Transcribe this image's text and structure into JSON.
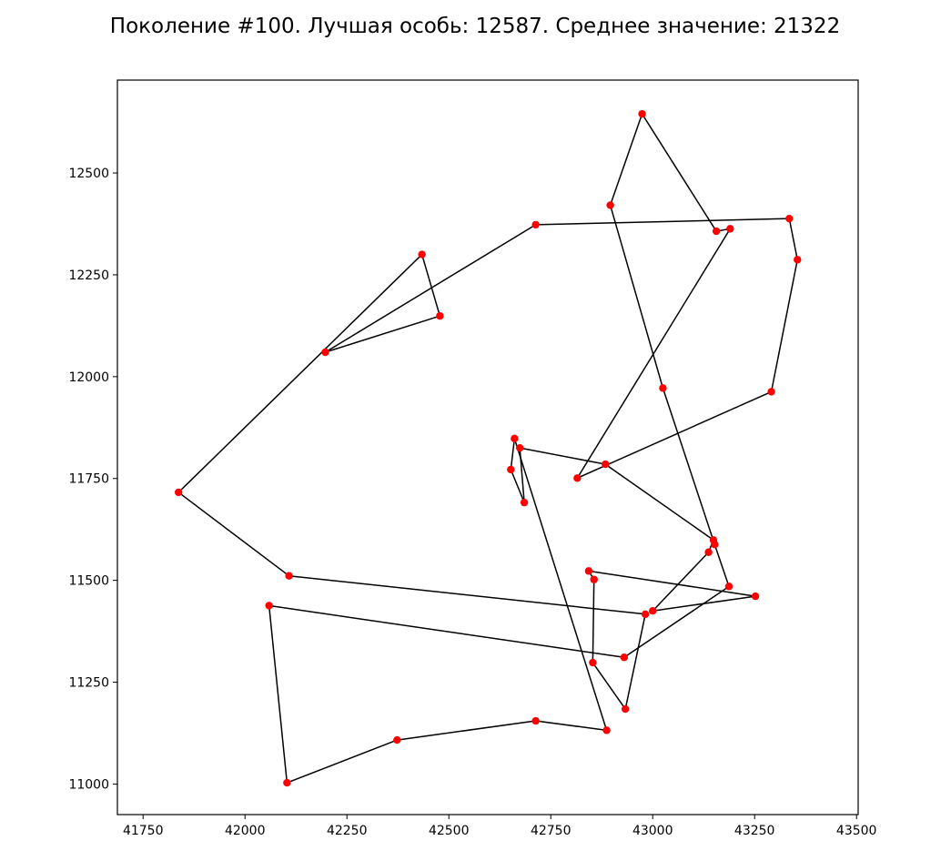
{
  "chart_data": {
    "type": "line",
    "title": "Поколение #100. Лучшая особь: 12587. Среднее значение: 21322",
    "xlabel": "",
    "ylabel": "",
    "xlim": [
      41687,
      43504
    ],
    "ylim": [
      10925,
      12728
    ],
    "xticks": [
      41750,
      42000,
      42250,
      42500,
      42750,
      43000,
      43250,
      43500
    ],
    "yticks": [
      11000,
      11250,
      11500,
      11750,
      12000,
      12250,
      12500
    ],
    "grid": false,
    "closed_route": true,
    "line_color": "#000000",
    "marker_color": "#ff0000",
    "route": [
      [
        42974,
        12645
      ],
      [
        43156,
        12357
      ],
      [
        43190,
        12363
      ],
      [
        42815,
        11751
      ],
      [
        43291,
        11963
      ],
      [
        43355,
        12287
      ],
      [
        43335,
        12388
      ],
      [
        42713,
        12373
      ],
      [
        42197,
        12060
      ],
      [
        42478,
        12149
      ],
      [
        42434,
        12300
      ],
      [
        41837,
        11716
      ],
      [
        42108,
        11511
      ],
      [
        42982,
        11417
      ],
      [
        42933,
        11184
      ],
      [
        42853,
        11298
      ],
      [
        42856,
        11502
      ],
      [
        42843,
        11523
      ],
      [
        43252,
        11461
      ],
      [
        43000,
        11425
      ],
      [
        43137,
        11569
      ],
      [
        43149,
        11599
      ],
      [
        42884,
        11785
      ],
      [
        42674,
        11825
      ],
      [
        42685,
        11691
      ],
      [
        42652,
        11772
      ],
      [
        42661,
        11848
      ],
      [
        42887,
        11132
      ],
      [
        42713,
        11155
      ],
      [
        42373,
        11108
      ],
      [
        42103,
        11003
      ],
      [
        42059,
        11438
      ],
      [
        42930,
        11311
      ],
      [
        43187,
        11485
      ],
      [
        43152,
        11588
      ],
      [
        43025,
        11972
      ],
      [
        42896,
        12421
      ]
    ]
  }
}
